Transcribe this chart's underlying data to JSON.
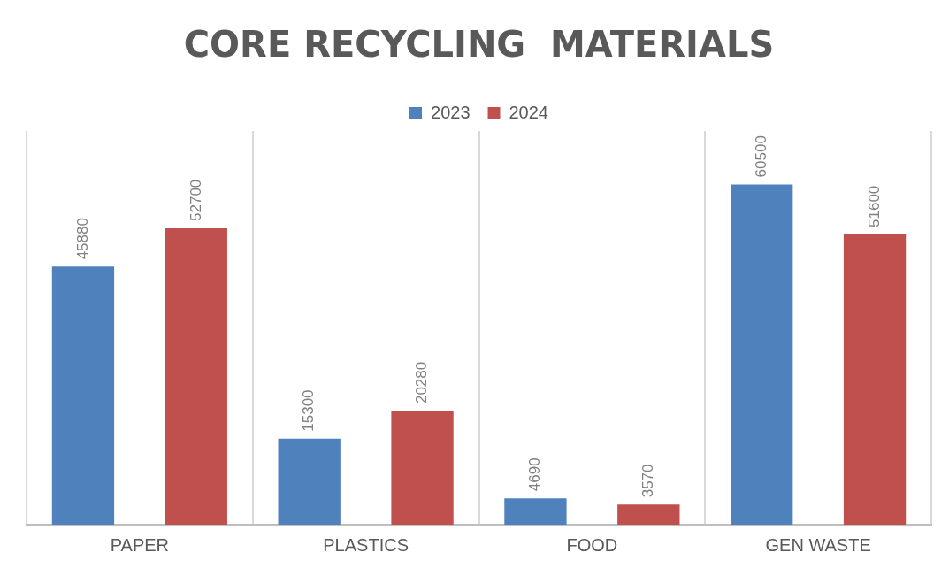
{
  "chart_data": {
    "type": "bar",
    "title": "CORE RECYCLING  MATERIALS",
    "categories": [
      "PAPER",
      "PLASTICS",
      "FOOD",
      "GEN WASTE"
    ],
    "series": [
      {
        "name": "2023",
        "color": "#4f81bd",
        "values": [
          45880,
          15300,
          4690,
          60500
        ]
      },
      {
        "name": "2024",
        "color": "#c0504d",
        "values": [
          52700,
          20280,
          3570,
          51600
        ]
      }
    ],
    "data_labels": true,
    "legend": "top",
    "grid": "x"
  }
}
